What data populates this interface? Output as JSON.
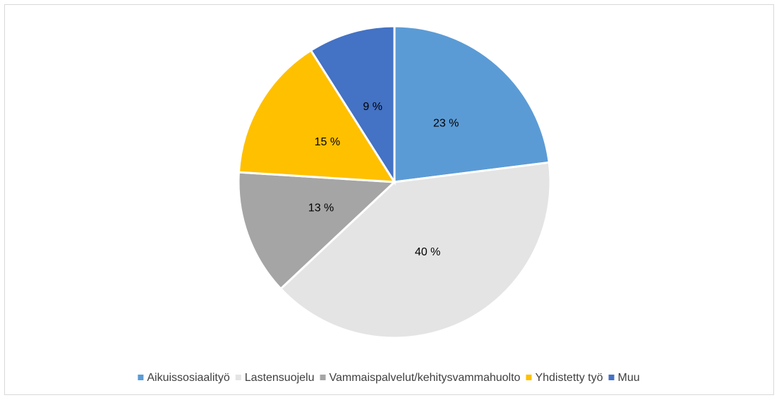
{
  "chart_data": {
    "type": "pie",
    "categories": [
      "Aikuissosiaalityö",
      "Lastensuojelu",
      "Vammaispalvelut/kehitysvammahuolto",
      "Yhdistetty työ",
      "Muu"
    ],
    "values": [
      23,
      40,
      13,
      15,
      9
    ],
    "value_labels": [
      "23 %",
      "40 %",
      "13 %",
      "15 %",
      "9 %"
    ],
    "colors": [
      "#5b9bd5",
      "#e4e4e4",
      "#a5a5a5",
      "#ffc000",
      "#4472c4"
    ],
    "legend": "bottom"
  }
}
